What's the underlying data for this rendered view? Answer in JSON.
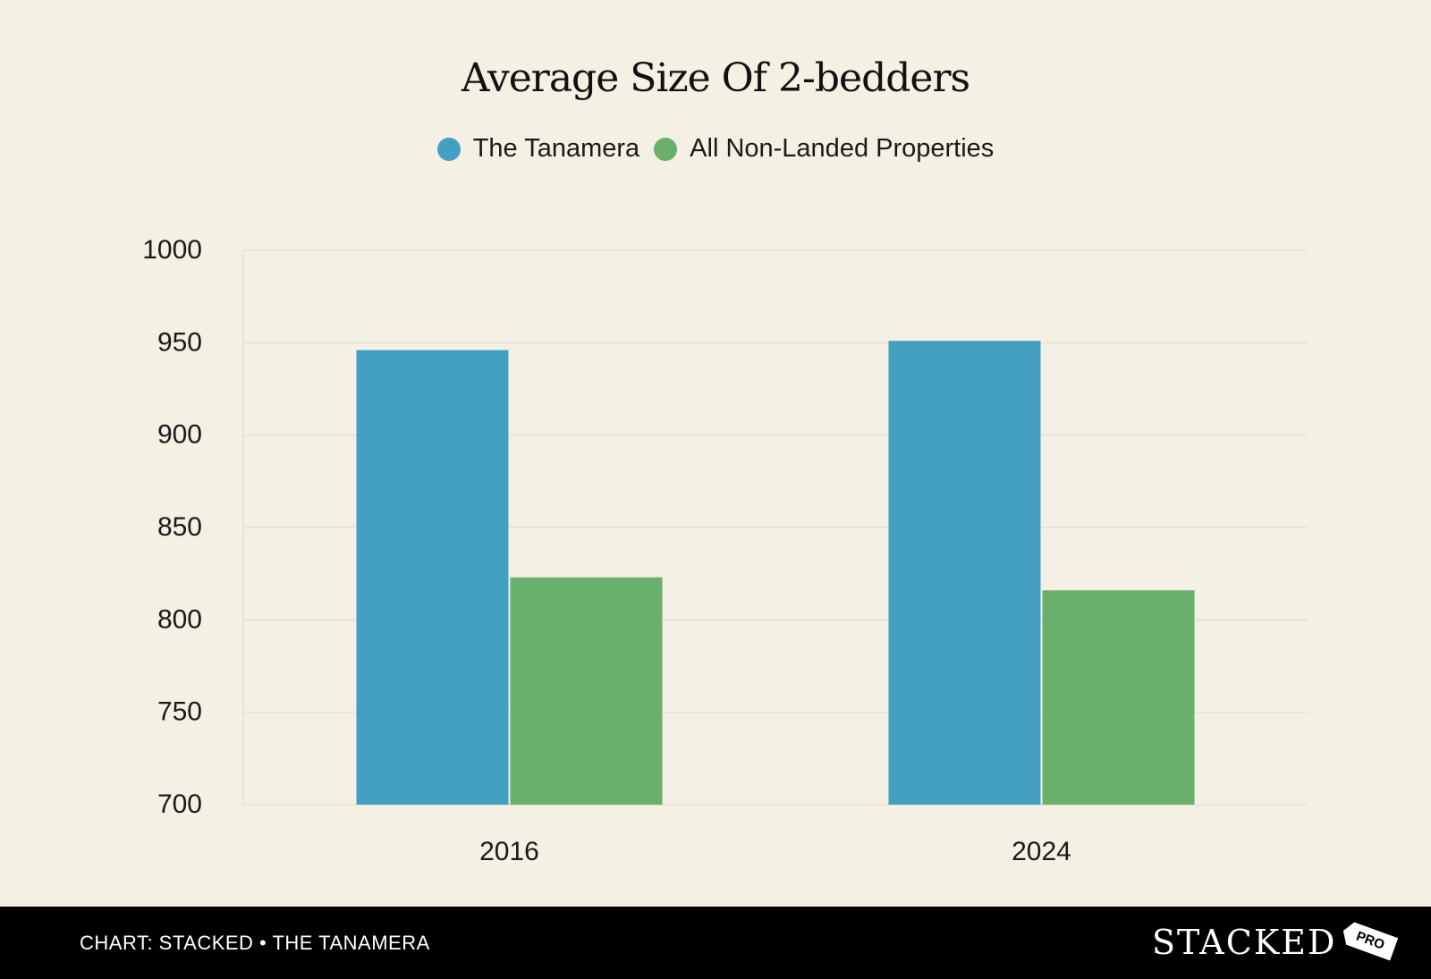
{
  "chart_data": {
    "type": "bar",
    "title": "Average Size Of 2-bedders",
    "xlabel": "",
    "ylabel": "",
    "categories": [
      "2016",
      "2024"
    ],
    "series": [
      {
        "name": "The Tanamera",
        "color": "#43a0c2",
        "values": [
          946,
          951
        ]
      },
      {
        "name": "All Non-Landed Properties",
        "color": "#68b06c",
        "values": [
          823,
          816
        ]
      }
    ],
    "ylim": [
      700,
      1000
    ],
    "yticks": [
      700,
      750,
      800,
      850,
      900,
      950,
      1000
    ],
    "grid": true,
    "legend_position": "top-center"
  },
  "footer": {
    "source": "CHART: STACKED • THE TANAMERA",
    "brand": "STACKED",
    "brand_tag": "PRO"
  },
  "colors": {
    "background": "#f4f0e4",
    "footer_background": "#000000",
    "gridline": "#e4e0d4"
  }
}
